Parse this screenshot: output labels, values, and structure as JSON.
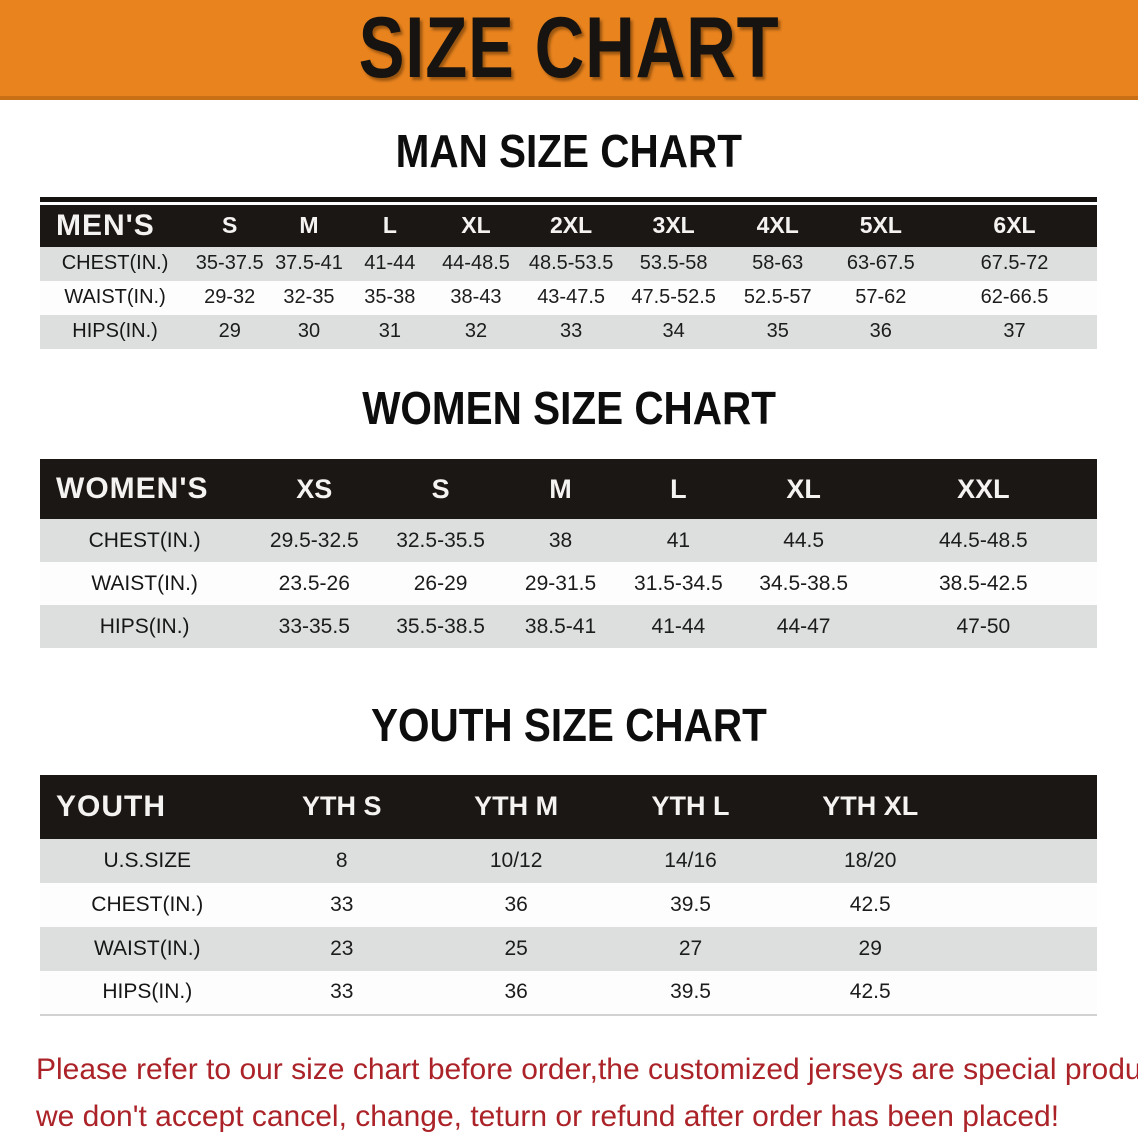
{
  "banner": {
    "title": "SIZE CHART"
  },
  "colors": {
    "banner_bg": "#E8831E",
    "header_bar": "#1B1714",
    "row_alt_gray": "#DDDFDF",
    "disclaimer_text": "#AB2328"
  },
  "sections": [
    {
      "heading": "MAN SIZE CHART",
      "label": "MEN'S",
      "columns": [
        "S",
        "M",
        "L",
        "XL",
        "2XL",
        "3XL",
        "4XL",
        "5XL",
        "6XL"
      ],
      "rows": [
        {
          "label": "CHEST(IN.)",
          "values": [
            "35-37.5",
            "37.5-41",
            "41-44",
            "44-48.5",
            "48.5-53.5",
            "53.5-58",
            "58-63",
            "63-67.5",
            "67.5-72"
          ]
        },
        {
          "label": "WAIST(IN.)",
          "values": [
            "29-32",
            "32-35",
            "35-38",
            "38-43",
            "43-47.5",
            "47.5-52.5",
            "52.5-57",
            "57-62",
            "62-66.5"
          ]
        },
        {
          "label": "HIPS(IN.)",
          "values": [
            "29",
            "30",
            "31",
            "32",
            "33",
            "34",
            "35",
            "36",
            "37"
          ]
        }
      ]
    },
    {
      "heading": "WOMEN SIZE CHART",
      "label": "WOMEN'S",
      "columns": [
        "XS",
        "S",
        "M",
        "L",
        "XL",
        "XXL"
      ],
      "rows": [
        {
          "label": "CHEST(IN.)",
          "values": [
            "29.5-32.5",
            "32.5-35.5",
            "38",
            "41",
            "44.5",
            "44.5-48.5"
          ]
        },
        {
          "label": "WAIST(IN.)",
          "values": [
            "23.5-26",
            "26-29",
            "29-31.5",
            "31.5-34.5",
            "34.5-38.5",
            "38.5-42.5"
          ]
        },
        {
          "label": "HIPS(IN.)",
          "values": [
            "33-35.5",
            "35.5-38.5",
            "38.5-41",
            "41-44",
            "44-47",
            "47-50"
          ]
        }
      ]
    },
    {
      "heading": "YOUTH SIZE CHART",
      "label": "YOUTH",
      "columns": [
        "YTH S",
        "YTH M",
        "YTH L",
        "YTH XL"
      ],
      "rows": [
        {
          "label": "U.S.SIZE",
          "values": [
            "8",
            "10/12",
            "14/16",
            "18/20"
          ]
        },
        {
          "label": "CHEST(IN.)",
          "values": [
            "33",
            "36",
            "39.5",
            "42.5"
          ]
        },
        {
          "label": "WAIST(IN.)",
          "values": [
            "23",
            "25",
            "27",
            "29"
          ]
        },
        {
          "label": "HIPS(IN.)",
          "values": [
            "33",
            "36",
            "39.5",
            "42.5"
          ]
        }
      ]
    }
  ],
  "disclaimer": {
    "line1": "Please refer to our size chart before order,the customized jerseys are special products,",
    "line2": "we don't accept cancel, change, teturn or refund after order has been placed!"
  }
}
